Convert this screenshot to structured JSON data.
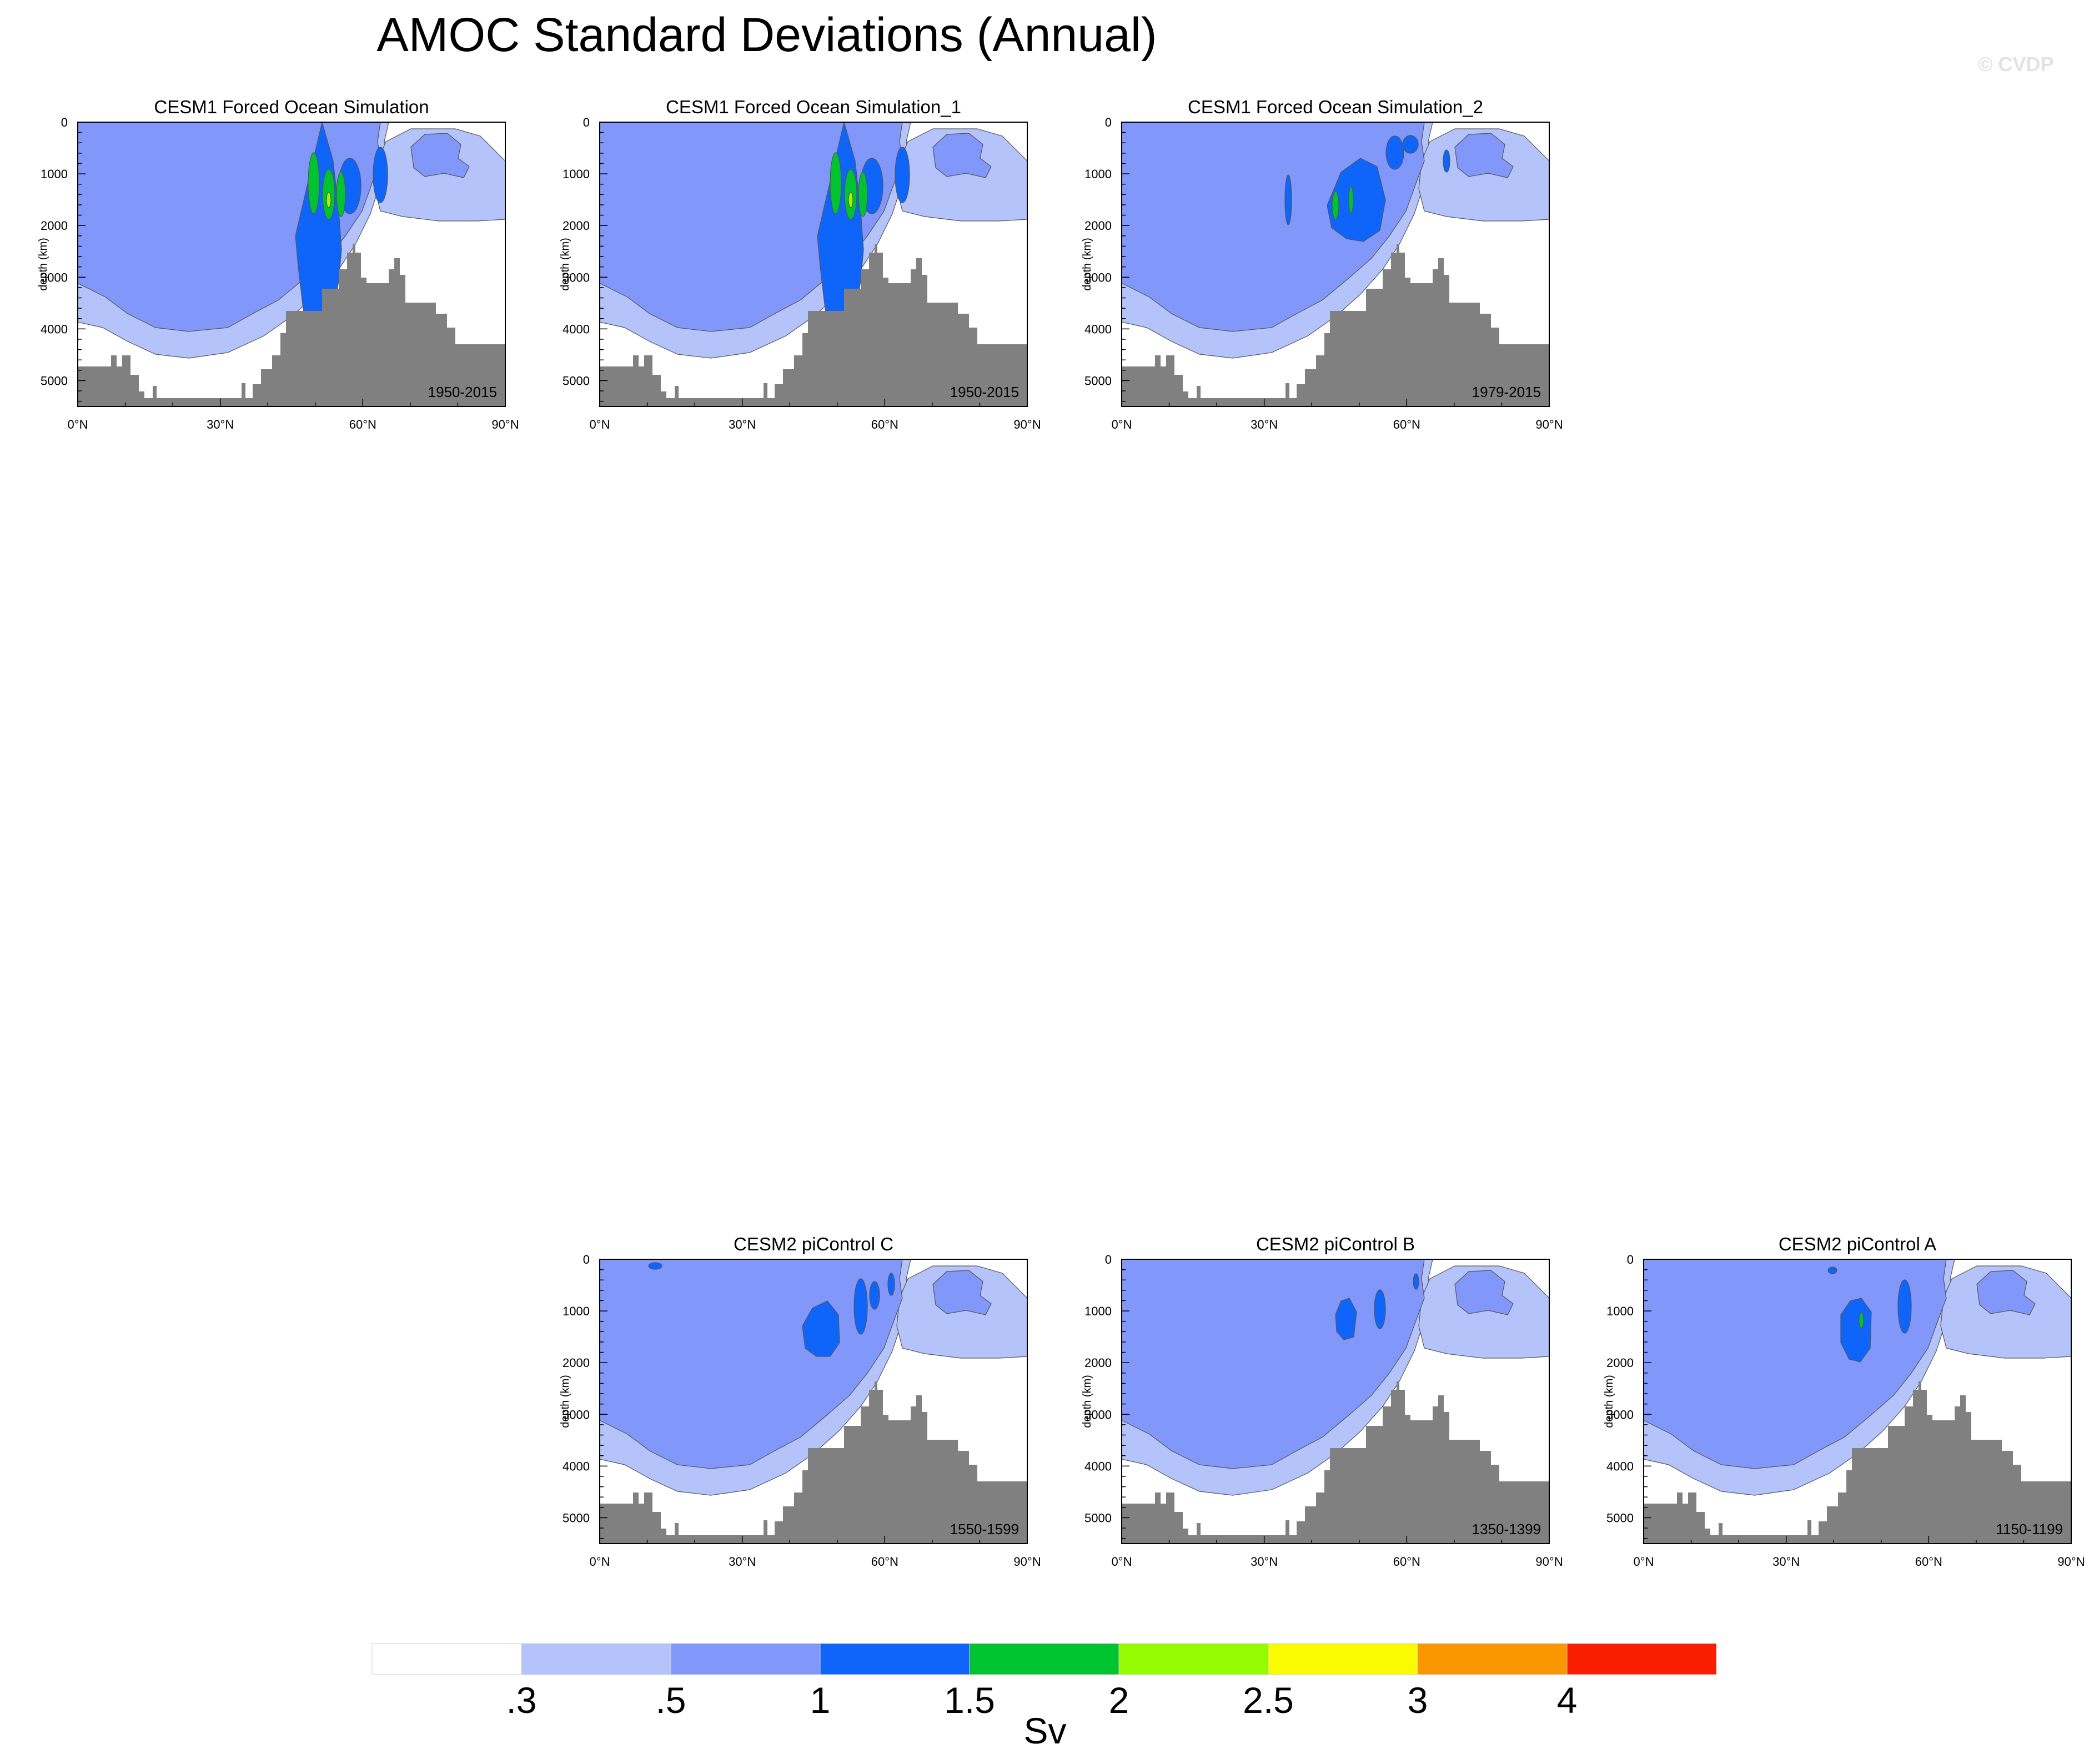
{
  "title": "AMOC Standard Deviations (Annual)",
  "watermark": "© CVDP",
  "chart_data": [
    {
      "type": "heatmap",
      "title": "CESM1 Forced Ocean Simulation",
      "period": "1950-2015",
      "ylabel": "depth (km)",
      "xlim": [
        0,
        90
      ],
      "ylim": [
        5500,
        0
      ],
      "x_ticks": [
        0,
        30,
        60,
        90
      ],
      "x_tick_labels": [
        "0°N",
        "30°N",
        "60°N",
        "90°N"
      ],
      "y_ticks": [
        0,
        1000,
        2000,
        3000,
        4000,
        5000
      ],
      "y_tick_labels": [
        "0",
        "1000",
        "2000",
        "3000",
        "4000",
        "5000"
      ],
      "max_std_sv": 2.2
    },
    {
      "type": "heatmap",
      "title": "CESM1 Forced Ocean Simulation_1",
      "period": "1950-2015",
      "ylabel": "depth (km)",
      "xlim": [
        0,
        90
      ],
      "ylim": [
        5500,
        0
      ],
      "x_ticks": [
        0,
        30,
        60,
        90
      ],
      "x_tick_labels": [
        "0°N",
        "30°N",
        "60°N",
        "90°N"
      ],
      "y_ticks": [
        0,
        1000,
        2000,
        3000,
        4000,
        5000
      ],
      "y_tick_labels": [
        "0",
        "1000",
        "2000",
        "3000",
        "4000",
        "5000"
      ],
      "max_std_sv": 2.2
    },
    {
      "type": "heatmap",
      "title": "CESM1 Forced Ocean Simulation_2",
      "period": "1979-2015",
      "ylabel": "depth (km)",
      "xlim": [
        0,
        90
      ],
      "ylim": [
        5500,
        0
      ],
      "x_ticks": [
        0,
        30,
        60,
        90
      ],
      "x_tick_labels": [
        "0°N",
        "30°N",
        "60°N",
        "90°N"
      ],
      "y_ticks": [
        0,
        1000,
        2000,
        3000,
        4000,
        5000
      ],
      "y_tick_labels": [
        "0",
        "1000",
        "2000",
        "3000",
        "4000",
        "5000"
      ],
      "max_std_sv": 2.0
    },
    {
      "type": "heatmap",
      "title": "CESM2 piControl C",
      "period": "1550-1599",
      "ylabel": "depth (km)",
      "xlim": [
        0,
        90
      ],
      "ylim": [
        5500,
        0
      ],
      "x_ticks": [
        0,
        30,
        60,
        90
      ],
      "x_tick_labels": [
        "0°N",
        "30°N",
        "60°N",
        "90°N"
      ],
      "y_ticks": [
        0,
        1000,
        2000,
        3000,
        4000,
        5000
      ],
      "y_tick_labels": [
        "0",
        "1000",
        "2000",
        "3000",
        "4000",
        "5000"
      ],
      "max_std_sv": 1.5
    },
    {
      "type": "heatmap",
      "title": "CESM2 piControl B",
      "period": "1350-1399",
      "ylabel": "depth (km)",
      "xlim": [
        0,
        90
      ],
      "ylim": [
        5500,
        0
      ],
      "x_ticks": [
        0,
        30,
        60,
        90
      ],
      "x_tick_labels": [
        "0°N",
        "30°N",
        "60°N",
        "90°N"
      ],
      "y_ticks": [
        0,
        1000,
        2000,
        3000,
        4000,
        5000
      ],
      "y_tick_labels": [
        "0",
        "1000",
        "2000",
        "3000",
        "4000",
        "5000"
      ],
      "max_std_sv": 1.5
    },
    {
      "type": "heatmap",
      "title": "CESM2 piControl A",
      "period": "1150-1199",
      "ylabel": "depth (km)",
      "xlim": [
        0,
        90
      ],
      "ylim": [
        5500,
        0
      ],
      "x_ticks": [
        0,
        30,
        60,
        90
      ],
      "x_tick_labels": [
        "0°N",
        "30°N",
        "60°N",
        "90°N"
      ],
      "y_ticks": [
        0,
        1000,
        2000,
        3000,
        4000,
        5000
      ],
      "y_tick_labels": [
        "0",
        "1000",
        "2000",
        "3000",
        "4000",
        "5000"
      ],
      "max_std_sv": 1.6
    }
  ],
  "colorbar": {
    "label": "Sv",
    "levels": [
      ".3",
      ".5",
      "1",
      "1.5",
      "2",
      "2.5",
      "3",
      "4"
    ],
    "colors": [
      "#ffffff",
      "#b4c3fa",
      "#8297fa",
      "#0f64fa",
      "#00c332",
      "#96fa00",
      "#fafa00",
      "#fa9600",
      "#fa1e00"
    ]
  },
  "colors": {
    "land": "#808080",
    "contour_line": "#555555"
  }
}
